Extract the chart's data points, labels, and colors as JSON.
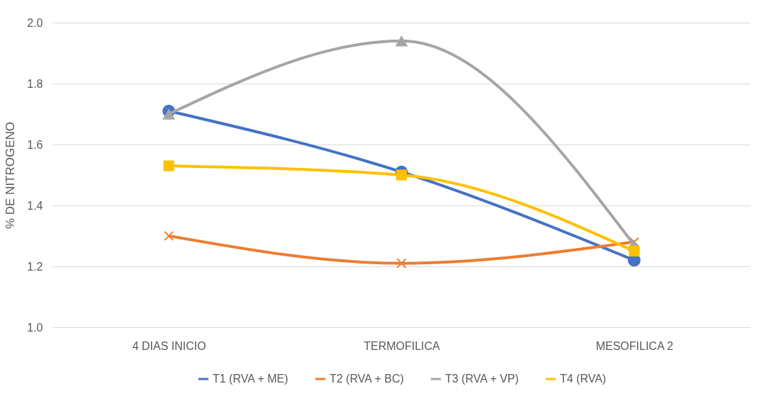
{
  "chart_data": {
    "type": "line",
    "ylabel": "% DE NITROGENO",
    "categories": [
      "4 DIAS INICIO",
      "TERMOFILICA",
      "MESOFILICA 2"
    ],
    "series": [
      {
        "name": "T1 (RVA + ME)",
        "color": "#4472c4",
        "marker": "circle",
        "values": [
          1.71,
          1.51,
          1.22
        ]
      },
      {
        "name": "T2 (RVA + BC)",
        "color": "#ed7d31",
        "marker": "cross",
        "values": [
          1.3,
          1.21,
          1.28
        ]
      },
      {
        "name": "T3 (RVA + VP)",
        "color": "#a5a5a5",
        "marker": "triangle",
        "values": [
          1.7,
          1.94,
          1.27
        ]
      },
      {
        "name": "T4 (RVA)",
        "color": "#ffc000",
        "marker": "square",
        "values": [
          1.53,
          1.5,
          1.25
        ]
      }
    ],
    "ylim": [
      1.0,
      2.0
    ],
    "yticks": [
      {
        "value": 1.0,
        "label": "1.0"
      },
      {
        "value": 1.2,
        "label": "1.2"
      },
      {
        "value": 1.4,
        "label": "1.4"
      },
      {
        "value": 1.6,
        "label": "1.6"
      },
      {
        "value": 1.8,
        "label": "1.8"
      },
      {
        "value": 2.0,
        "label": "2.0"
      }
    ],
    "grid": "y",
    "legend": "bottom"
  }
}
